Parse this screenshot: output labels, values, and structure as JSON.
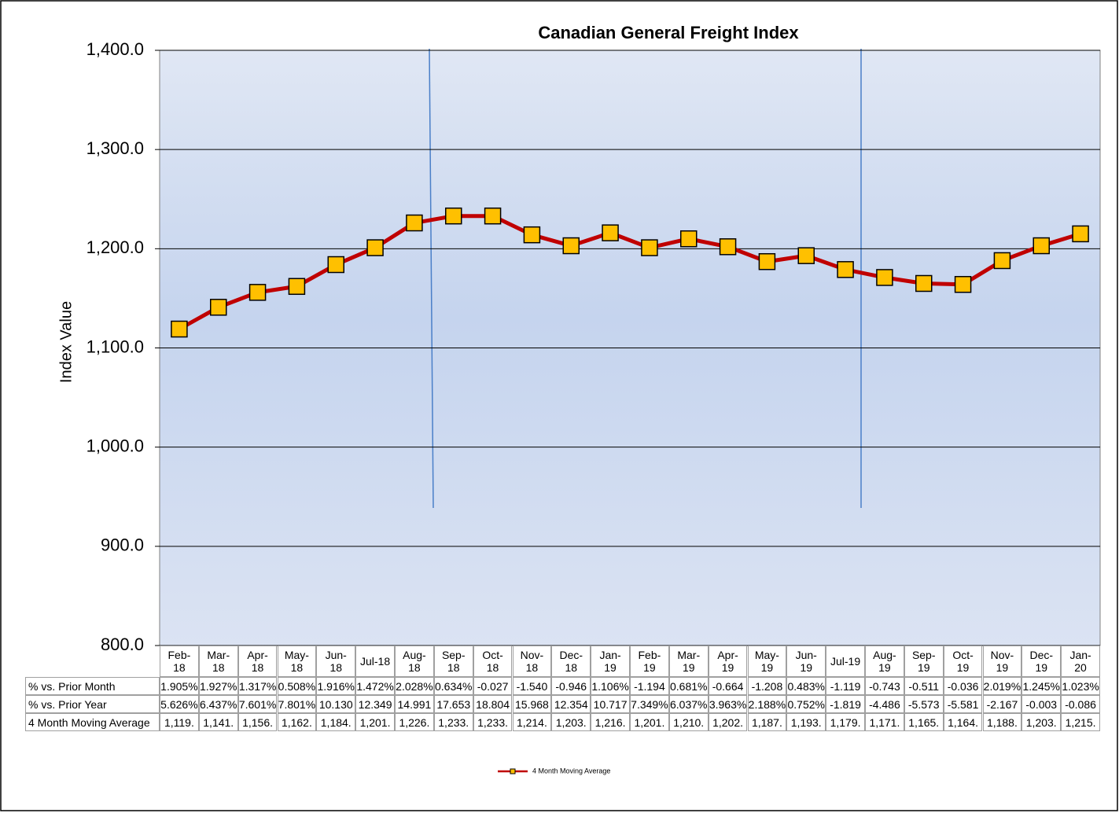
{
  "chart_data": {
    "type": "line",
    "title": "Canadian General Freight Index",
    "ylabel": "Index Value",
    "categories": [
      "Feb-18",
      "Mar-18",
      "Apr-18",
      "May-18",
      "Jun-18",
      "Jul-18",
      "Aug-18",
      "Sep-18",
      "Oct-18",
      "Nov-18",
      "Dec-18",
      "Jan-19",
      "Feb-19",
      "Mar-19",
      "Apr-19",
      "May-19",
      "Jun-19",
      "Jul-19",
      "Aug-19",
      "Sep-19",
      "Oct-19",
      "Nov-19",
      "Dec-19",
      "Jan-20"
    ],
    "series": [
      {
        "name": "4 Month Moving Average",
        "color": "#c00000",
        "marker_color": "#ffc000",
        "values": [
          1119,
          1141,
          1156,
          1162,
          1184,
          1201,
          1226,
          1233,
          1233,
          1214,
          1203,
          1216,
          1201,
          1210,
          1202,
          1187,
          1193,
          1179,
          1171,
          1165,
          1164,
          1188,
          1203,
          1215
        ],
        "value_labels": [
          "1,119.",
          "1,141.",
          "1,156.",
          "1,162.",
          "1,184.",
          "1,201.",
          "1,226.",
          "1,233.",
          "1,233.",
          "1,214.",
          "1,203.",
          "1,216.",
          "1,201.",
          "1,210.",
          "1,202.",
          "1,187.",
          "1,193.",
          "1,179.",
          "1,171.",
          "1,165.",
          "1,164.",
          "1,188.",
          "1,203.",
          "1,215."
        ]
      }
    ],
    "ylim": [
      800,
      1400
    ],
    "yticks": [
      {
        "value": 800,
        "label": "800.0"
      },
      {
        "value": 900,
        "label": "900.0"
      },
      {
        "value": 1000,
        "label": "1,000.0"
      },
      {
        "value": 1100,
        "label": "1,100.0"
      },
      {
        "value": 1200,
        "label": "1,200.0"
      },
      {
        "value": 1300,
        "label": "1,300.0"
      },
      {
        "value": 1400,
        "label": "1,400.0"
      }
    ],
    "grid": true,
    "legend": "bottom",
    "table": {
      "rows": [
        {
          "name": "% vs. Prior Month",
          "cells": [
            "1.905%",
            "1.927%",
            "1.317%",
            "0.508%",
            "1.916%",
            "1.472%",
            "2.028%",
            "0.634%",
            "-0.027",
            "-1.540",
            "-0.946",
            "1.106%",
            "-1.194",
            "0.681%",
            "-0.664",
            "-1.208",
            "0.483%",
            "-1.119",
            "-0.743",
            "-0.511",
            "-0.036",
            "2.019%",
            "1.245%",
            "1.023%"
          ]
        },
        {
          "name": "% vs. Prior Year",
          "cells": [
            "5.626%",
            "6.437%",
            "7.601%",
            "7.801%",
            "10.130",
            "12.349",
            "14.991",
            "17.653",
            "18.804",
            "15.968",
            "12.354",
            "10.717",
            "7.349%",
            "6.037%",
            "3.963%",
            "2.188%",
            "0.752%",
            "-1.819",
            "-4.486",
            "-5.573",
            "-5.581",
            "-2.167",
            "-0.003",
            "-0.086"
          ]
        }
      ]
    }
  }
}
